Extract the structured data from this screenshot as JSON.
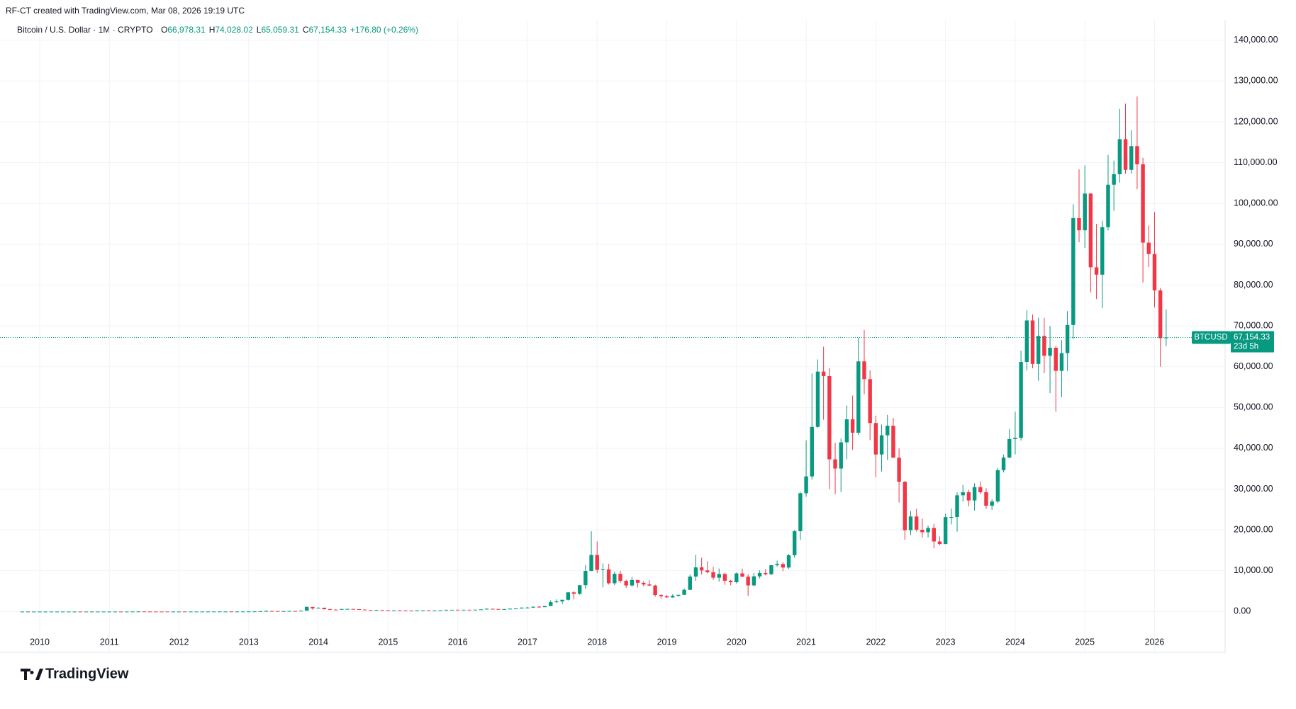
{
  "chart_data": {
    "type": "candlestick",
    "credit": "RF-CT created with TradingView.com, Mar 08, 2026 19:19 UTC",
    "title": "Bitcoin / U.S. Dollar · 1M · CRYPTO",
    "legend_values": [
      {
        "key": "O",
        "value": "66,978.31"
      },
      {
        "key": "H",
        "value": "74,028.02"
      },
      {
        "key": "L",
        "value": "65,059.31"
      },
      {
        "key": "C",
        "value": "67,154.33"
      }
    ],
    "change": "+176.80 (+0.26%)",
    "symbol_tag": "BTCUSD",
    "last_price": {
      "value": 67154.33,
      "label": "67,154.33"
    },
    "countdown": "23d 5h",
    "up_color": "#089981",
    "down_color": "#f23645",
    "grid": true,
    "ylim": [
      -10000,
      145000
    ],
    "yticks": [
      {
        "value": 0,
        "label": "0.00"
      },
      {
        "value": 10000,
        "label": "10,000.00"
      },
      {
        "value": 20000,
        "label": "20,000.00"
      },
      {
        "value": 30000,
        "label": "30,000.00"
      },
      {
        "value": 40000,
        "label": "40,000.00"
      },
      {
        "value": 50000,
        "label": "50,000.00"
      },
      {
        "value": 60000,
        "label": "60,000.00"
      },
      {
        "value": 70000,
        "label": "70,000.00"
      },
      {
        "value": 80000,
        "label": "80,000.00"
      },
      {
        "value": 90000,
        "label": "90,000.00"
      },
      {
        "value": 100000,
        "label": "100,000.00"
      },
      {
        "value": 110000,
        "label": "110,000.00"
      },
      {
        "value": 120000,
        "label": "120,000.00"
      },
      {
        "value": 130000,
        "label": "130,000.00"
      },
      {
        "value": 140000,
        "label": "140,000.00"
      }
    ],
    "categories": [
      null,
      null,
      null,
      "2010",
      null,
      null,
      null,
      null,
      null,
      null,
      null,
      null,
      null,
      null,
      null,
      "2011",
      null,
      null,
      null,
      null,
      null,
      null,
      null,
      null,
      null,
      null,
      null,
      "2012",
      null,
      null,
      null,
      null,
      null,
      null,
      null,
      null,
      null,
      null,
      null,
      "2013",
      null,
      null,
      null,
      null,
      null,
      null,
      null,
      null,
      null,
      null,
      null,
      "2014",
      null,
      null,
      null,
      null,
      null,
      null,
      null,
      null,
      null,
      null,
      null,
      "2015",
      null,
      null,
      null,
      null,
      null,
      null,
      null,
      null,
      null,
      null,
      null,
      "2016",
      null,
      null,
      null,
      null,
      null,
      null,
      null,
      null,
      null,
      null,
      null,
      "2017",
      null,
      null,
      null,
      null,
      null,
      null,
      null,
      null,
      null,
      null,
      null,
      "2018",
      null,
      null,
      null,
      null,
      null,
      null,
      null,
      null,
      null,
      null,
      null,
      "2019",
      null,
      null,
      null,
      null,
      null,
      null,
      null,
      null,
      null,
      null,
      null,
      "2020",
      null,
      null,
      null,
      null,
      null,
      null,
      null,
      null,
      null,
      null,
      null,
      "2021",
      null,
      null,
      null,
      null,
      null,
      null,
      null,
      null,
      null,
      null,
      null,
      "2022",
      null,
      null,
      null,
      null,
      null,
      null,
      null,
      null,
      null,
      null,
      null,
      "2023",
      null,
      null,
      null,
      null,
      null,
      null,
      null,
      null,
      null,
      null,
      null,
      "2024",
      null,
      null,
      null,
      null,
      null,
      null,
      null,
      null,
      null,
      null,
      null,
      "2025",
      null,
      null,
      null,
      null,
      null,
      null,
      null,
      null,
      null,
      null,
      null,
      "2026",
      null,
      null
    ],
    "ohlc": [
      [
        0.05,
        0.05,
        0.05,
        0.05
      ],
      [
        0.05,
        0.05,
        0.05,
        0.05
      ],
      [
        0.05,
        0.05,
        0.05,
        0.05
      ],
      [
        0.05,
        0.05,
        0.05,
        0.05
      ],
      [
        0.05,
        0.05,
        0.05,
        0.05
      ],
      [
        0.05,
        0.05,
        0.05,
        0.05
      ],
      [
        0.05,
        0.05,
        0.05,
        0.05
      ],
      [
        0.05,
        0.05,
        0.05,
        0.05
      ],
      [
        0.05,
        0.05,
        0.05,
        0.05
      ],
      [
        0.05,
        0.1,
        0.05,
        0.07
      ],
      [
        0.07,
        0.07,
        0.06,
        0.06
      ],
      [
        0.06,
        0.07,
        0.06,
        0.06
      ],
      [
        0.06,
        0.2,
        0.06,
        0.2
      ],
      [
        0.2,
        0.5,
        0.2,
        0.21
      ],
      [
        0.21,
        0.3,
        0.2,
        0.3
      ],
      [
        0.3,
        0.5,
        0.3,
        0.5
      ],
      [
        0.5,
        1.1,
        0.5,
        0.9
      ],
      [
        0.9,
        0.95,
        0.7,
        0.8
      ],
      [
        0.8,
        3.5,
        0.6,
        3.5
      ],
      [
        3.5,
        9,
        3,
        8.7
      ],
      [
        8.7,
        32,
        7,
        16.7
      ],
      [
        16.7,
        17.5,
        12,
        13.4
      ],
      [
        13.4,
        14,
        6.5,
        8.2
      ],
      [
        8.2,
        8.6,
        4.2,
        5.1
      ],
      [
        5.1,
        5.2,
        2,
        3.2
      ],
      [
        3.2,
        3.5,
        2,
        3
      ],
      [
        3,
        4.8,
        2.8,
        4.7
      ],
      [
        4.7,
        7.2,
        4.5,
        5.5
      ],
      [
        5.5,
        6.3,
        4.2,
        4.9
      ],
      [
        4.9,
        5.4,
        4.6,
        4.9
      ],
      [
        4.9,
        5.3,
        4.8,
        5
      ],
      [
        5,
        5.2,
        4.9,
        5.2
      ],
      [
        5.2,
        6.8,
        5.1,
        6.7
      ],
      [
        6.7,
        9.6,
        6.4,
        9.4
      ],
      [
        9.4,
        16,
        7,
        10.2
      ],
      [
        10.2,
        12.6,
        10,
        12.4
      ],
      [
        12.4,
        12.8,
        9.9,
        11.2
      ],
      [
        11.2,
        12.8,
        10.6,
        12.6
      ],
      [
        12.6,
        13.8,
        12.6,
        13.5
      ],
      [
        13.5,
        20.8,
        13.2,
        20
      ],
      [
        20,
        33,
        19.6,
        33
      ],
      [
        33,
        95,
        33,
        93
      ],
      [
        93,
        266,
        50,
        139
      ],
      [
        139,
        140,
        79,
        129
      ],
      [
        129,
        129,
        88,
        97
      ],
      [
        97,
        111,
        65,
        106
      ],
      [
        106,
        141,
        102,
        141
      ],
      [
        141,
        146,
        110,
        133
      ],
      [
        133,
        215,
        101,
        204
      ],
      [
        204,
        1242,
        200,
        1130
      ],
      [
        1130,
        1163,
        450,
        757
      ],
      [
        757,
        1000,
        740,
        933
      ],
      [
        933,
        948,
        500,
        574
      ],
      [
        574,
        718,
        440,
        459
      ],
      [
        459,
        549,
        339,
        448
      ],
      [
        448,
        633,
        435,
        630
      ],
      [
        630,
        683,
        543,
        641
      ],
      [
        641,
        651,
        565,
        590
      ],
      [
        590,
        601,
        435,
        480
      ],
      [
        480,
        494,
        350,
        388
      ],
      [
        388,
        412,
        275,
        338
      ],
      [
        338,
        457,
        323,
        378
      ],
      [
        378,
        384,
        300,
        320
      ],
      [
        320,
        321,
        152,
        218
      ],
      [
        218,
        263,
        212,
        254
      ],
      [
        254,
        299,
        235,
        244
      ],
      [
        244,
        261,
        213,
        236
      ],
      [
        236,
        248,
        226,
        230
      ],
      [
        230,
        268,
        221,
        263
      ],
      [
        263,
        319,
        252,
        284
      ],
      [
        284,
        285,
        196,
        230
      ],
      [
        230,
        244,
        225,
        237
      ],
      [
        237,
        335,
        236,
        314
      ],
      [
        314,
        503,
        308,
        377
      ],
      [
        377,
        469,
        350,
        430
      ],
      [
        430,
        464,
        354,
        369
      ],
      [
        369,
        443,
        365,
        438
      ],
      [
        438,
        442,
        405,
        416
      ],
      [
        416,
        468,
        413,
        448
      ],
      [
        448,
        555,
        436,
        531
      ],
      [
        531,
        785,
        525,
        673
      ],
      [
        673,
        703,
        582,
        624
      ],
      [
        624,
        628,
        466,
        575
      ],
      [
        575,
        624,
        571,
        609
      ],
      [
        609,
        740,
        603,
        700
      ],
      [
        700,
        755,
        686,
        745
      ],
      [
        745,
        980,
        740,
        964
      ],
      [
        964,
        1150,
        755,
        970
      ],
      [
        970,
        1210,
        913,
        1190
      ],
      [
        1190,
        1350,
        890,
        1080
      ],
      [
        1080,
        1350,
        1075,
        1350
      ],
      [
        1350,
        2760,
        1350,
        2300
      ],
      [
        2300,
        2980,
        2080,
        2480
      ],
      [
        2480,
        2920,
        1830,
        2880
      ],
      [
        2880,
        4760,
        2680,
        4700
      ],
      [
        4700,
        4980,
        2970,
        4340
      ],
      [
        4340,
        6470,
        4110,
        6450
      ],
      [
        6450,
        11400,
        5520,
        9950
      ],
      [
        9950,
        19660,
        9900,
        13860
      ],
      [
        13860,
        17180,
        9400,
        10220
      ],
      [
        10220,
        11790,
        5950,
        10330
      ],
      [
        10330,
        11710,
        6600,
        6930
      ],
      [
        6930,
        9760,
        6450,
        9240
      ],
      [
        9240,
        9990,
        7040,
        7500
      ],
      [
        7500,
        7780,
        5780,
        6390
      ],
      [
        6390,
        8500,
        6070,
        7730
      ],
      [
        7730,
        7750,
        5880,
        7030
      ],
      [
        7030,
        7400,
        6140,
        6630
      ],
      [
        6630,
        7680,
        6200,
        6370
      ],
      [
        6370,
        6580,
        3650,
        4040
      ],
      [
        4040,
        4240,
        3160,
        3740
      ],
      [
        3740,
        4070,
        3380,
        3460
      ],
      [
        3460,
        4210,
        3390,
        3830
      ],
      [
        3830,
        4100,
        3700,
        4100
      ],
      [
        4100,
        5620,
        4090,
        5320
      ],
      [
        5320,
        9070,
        5320,
        8570
      ],
      [
        8570,
        13880,
        7510,
        10820
      ],
      [
        10820,
        13200,
        9070,
        10080
      ],
      [
        10080,
        12330,
        9350,
        9630
      ],
      [
        9630,
        10940,
        7730,
        8290
      ],
      [
        8290,
        10540,
        7310,
        9200
      ],
      [
        9200,
        9500,
        6550,
        7550
      ],
      [
        7550,
        7750,
        6430,
        7190
      ],
      [
        7190,
        9580,
        6870,
        9350
      ],
      [
        9350,
        10520,
        8440,
        8540
      ],
      [
        8540,
        9190,
        3850,
        6410
      ],
      [
        6410,
        9470,
        6150,
        8620
      ],
      [
        8620,
        10080,
        8120,
        9450
      ],
      [
        9450,
        10390,
        8830,
        9140
      ],
      [
        9140,
        11430,
        8960,
        11350
      ],
      [
        11350,
        12470,
        10960,
        11650
      ],
      [
        11650,
        12090,
        9890,
        10780
      ],
      [
        10780,
        14100,
        10430,
        13800
      ],
      [
        13800,
        19940,
        13200,
        19700
      ],
      [
        19700,
        29300,
        17580,
        28990
      ],
      [
        28990,
        41950,
        28130,
        33110
      ],
      [
        33110,
        58350,
        32300,
        45240
      ],
      [
        45240,
        61780,
        45000,
        58800
      ],
      [
        58800,
        64900,
        47000,
        57700
      ],
      [
        57700,
        59600,
        30000,
        37300
      ],
      [
        37300,
        41330,
        28800,
        35040
      ],
      [
        35040,
        42400,
        29300,
        41460
      ],
      [
        41460,
        50500,
        37330,
        47100
      ],
      [
        47100,
        52920,
        39600,
        43820
      ],
      [
        43820,
        67000,
        43290,
        61300
      ],
      [
        61300,
        69000,
        53250,
        56950
      ],
      [
        56950,
        59100,
        42000,
        46200
      ],
      [
        46200,
        47990,
        32930,
        38480
      ],
      [
        38480,
        45820,
        34320,
        43190
      ],
      [
        43190,
        48190,
        37160,
        45530
      ],
      [
        45530,
        47440,
        37700,
        37700
      ],
      [
        37700,
        40000,
        26700,
        31800
      ],
      [
        31800,
        31980,
        17600,
        19930
      ],
      [
        19930,
        24670,
        18780,
        23300
      ],
      [
        23300,
        25210,
        19560,
        20050
      ],
      [
        20050,
        22800,
        18150,
        19430
      ],
      [
        19430,
        21090,
        18190,
        20490
      ],
      [
        20490,
        21480,
        15480,
        17170
      ],
      [
        17170,
        18390,
        16260,
        16540
      ],
      [
        16540,
        23960,
        16500,
        23130
      ],
      [
        23130,
        25250,
        21350,
        23150
      ],
      [
        23150,
        29190,
        19550,
        28480
      ],
      [
        28480,
        31000,
        26940,
        29230
      ],
      [
        29230,
        29840,
        25810,
        27220
      ],
      [
        27220,
        31430,
        24750,
        30480
      ],
      [
        30480,
        31860,
        28860,
        29230
      ],
      [
        29230,
        30190,
        25170,
        25940
      ],
      [
        25940,
        27500,
        24900,
        26970
      ],
      [
        26970,
        35200,
        26560,
        34650
      ],
      [
        34650,
        38450,
        34100,
        37720
      ],
      [
        37720,
        44730,
        37620,
        42270
      ],
      [
        42270,
        48970,
        38500,
        42580
      ],
      [
        42580,
        63930,
        41880,
        61160
      ],
      [
        61160,
        73790,
        59100,
        71330
      ],
      [
        71330,
        72780,
        59600,
        60670
      ],
      [
        60670,
        71980,
        56550,
        67530
      ],
      [
        67530,
        71950,
        58400,
        62680
      ],
      [
        62680,
        70000,
        53500,
        64630
      ],
      [
        64630,
        65100,
        49000,
        58970
      ],
      [
        58970,
        66500,
        52550,
        63330
      ],
      [
        63330,
        73620,
        58900,
        70220
      ],
      [
        70220,
        99800,
        66800,
        96410
      ],
      [
        96410,
        108350,
        90500,
        93430
      ],
      [
        93430,
        109350,
        89100,
        102430
      ],
      [
        102430,
        102500,
        78200,
        84350
      ],
      [
        84350,
        95000,
        76600,
        82550
      ],
      [
        82550,
        95760,
        74400,
        94200
      ],
      [
        94200,
        111900,
        93400,
        104600
      ],
      [
        104600,
        110500,
        98200,
        107170
      ],
      [
        107170,
        123200,
        105100,
        115760
      ],
      [
        115760,
        124450,
        107300,
        108240
      ],
      [
        108240,
        117900,
        107300,
        114050
      ],
      [
        114050,
        126200,
        103500,
        109600
      ],
      [
        109600,
        111200,
        80600,
        90400
      ],
      [
        90400,
        94600,
        84400,
        87600
      ],
      [
        87600,
        97900,
        74500,
        78700
      ],
      [
        78700,
        79300,
        60000,
        66978.31
      ],
      [
        66978.31,
        74028.02,
        65059.31,
        67154.33
      ]
    ]
  },
  "branding": "TradingView"
}
